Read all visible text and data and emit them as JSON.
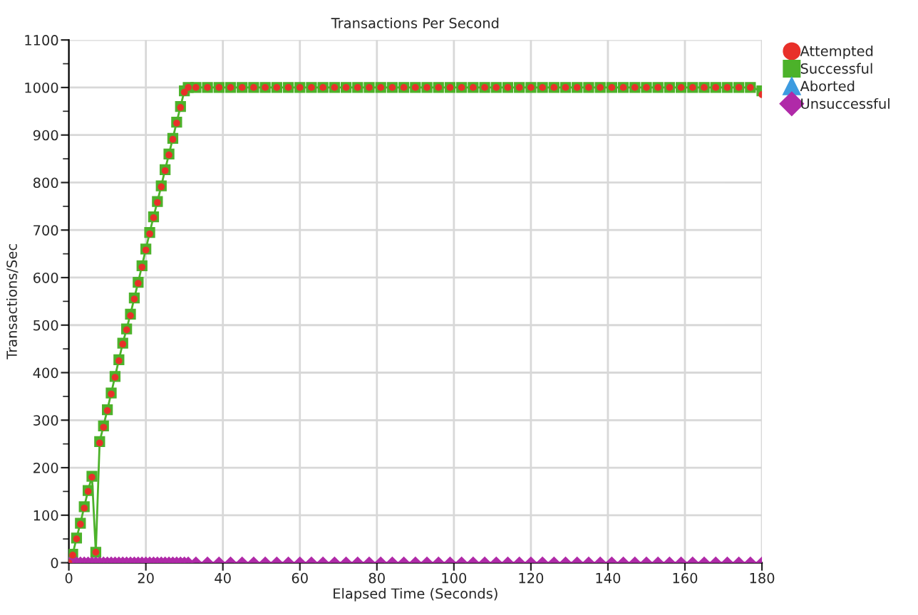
{
  "chart_data": {
    "type": "line",
    "title": "Transactions Per Second",
    "xlabel": "Elapsed Time (Seconds)",
    "ylabel": "Transactions/Sec",
    "x": [
      0,
      1,
      2,
      3,
      4,
      5,
      6,
      7,
      8,
      9,
      10,
      11,
      12,
      13,
      14,
      15,
      16,
      17,
      18,
      19,
      20,
      21,
      22,
      23,
      24,
      25,
      26,
      27,
      28,
      29,
      30,
      31,
      33,
      36,
      39,
      42,
      45,
      48,
      51,
      54,
      57,
      60,
      63,
      66,
      69,
      72,
      75,
      78,
      81,
      84,
      87,
      90,
      93,
      96,
      99,
      102,
      105,
      108,
      111,
      114,
      117,
      120,
      123,
      126,
      129,
      132,
      135,
      138,
      141,
      144,
      147,
      150,
      153,
      156,
      159,
      162,
      165,
      168,
      171,
      174,
      177,
      180
    ],
    "series": [
      {
        "name": "Attempted",
        "type": "scatter",
        "color": "#e8302a",
        "marker": "circle",
        "values": [
          0,
          16,
          50,
          81,
          115,
          150,
          180,
          22,
          252,
          285,
          320,
          355,
          390,
          425,
          460,
          490,
          520,
          555,
          588,
          622,
          658,
          692,
          726,
          758,
          791,
          825,
          858,
          891,
          925,
          958,
          990,
          1000,
          1000,
          1000,
          1000,
          1000,
          1000,
          1000,
          1000,
          1000,
          1000,
          1000,
          1000,
          1000,
          1000,
          1000,
          1000,
          1000,
          1000,
          1000,
          1000,
          1000,
          1000,
          1000,
          1000,
          1000,
          1000,
          1000,
          1000,
          1000,
          1000,
          1000,
          1000,
          1000,
          1000,
          1000,
          1000,
          1000,
          1000,
          1000,
          1000,
          1000,
          1000,
          1000,
          1000,
          1000,
          1000,
          1000,
          1000,
          1000,
          1000,
          985
        ]
      },
      {
        "name": "Successful",
        "color": "#4cb22a",
        "marker": "square",
        "values": [
          0,
          18,
          52,
          83,
          118,
          152,
          182,
          22,
          255,
          288,
          322,
          357,
          392,
          427,
          462,
          492,
          523,
          557,
          590,
          625,
          660,
          695,
          728,
          760,
          793,
          827,
          860,
          893,
          927,
          960,
          993,
          1000,
          1000,
          1000,
          1000,
          1000,
          1000,
          1000,
          1000,
          1000,
          1000,
          1000,
          1000,
          1000,
          1000,
          1000,
          1000,
          1000,
          1000,
          1000,
          1000,
          1000,
          1000,
          1000,
          1000,
          1000,
          1000,
          1000,
          1000,
          1000,
          1000,
          1000,
          1000,
          1000,
          1000,
          1000,
          1000,
          1000,
          1000,
          1000,
          1000,
          1000,
          1000,
          1000,
          1000,
          1000,
          1000,
          1000,
          1000,
          1000,
          1000,
          993
        ]
      },
      {
        "name": "Aborted",
        "color": "#3d9be0",
        "marker": "triangle",
        "values": [
          null,
          null,
          null,
          null,
          null,
          null,
          null,
          null,
          null,
          null,
          null,
          null,
          null,
          null,
          null,
          null,
          null,
          null,
          null,
          null,
          null,
          null,
          null,
          null,
          null,
          null,
          null,
          null,
          null,
          null,
          null,
          null,
          null,
          null,
          null,
          null,
          null,
          null,
          null,
          null,
          null,
          null,
          null,
          null,
          null,
          null,
          null,
          null,
          null,
          null,
          null,
          null,
          null,
          null,
          null,
          null,
          null,
          null,
          null,
          null,
          null,
          null,
          null,
          null,
          null,
          null,
          null,
          null,
          null,
          null,
          null,
          null,
          null,
          null,
          null,
          null,
          null,
          null,
          null,
          null,
          null,
          null
        ]
      },
      {
        "name": "Unsuccessful",
        "color": "#b02aa8",
        "marker": "diamond",
        "values": [
          0,
          0,
          0,
          0,
          0,
          0,
          0,
          0,
          0,
          0,
          0,
          0,
          0,
          0,
          0,
          0,
          0,
          0,
          0,
          0,
          0,
          0,
          0,
          0,
          0,
          0,
          0,
          0,
          0,
          0,
          0,
          0,
          0,
          0,
          0,
          0,
          0,
          0,
          0,
          0,
          0,
          0,
          0,
          0,
          0,
          0,
          0,
          0,
          0,
          0,
          0,
          0,
          0,
          0,
          0,
          0,
          0,
          0,
          0,
          0,
          0,
          0,
          0,
          0,
          0,
          0,
          0,
          0,
          0,
          0,
          0,
          0,
          0,
          0,
          0,
          0,
          0,
          0,
          0,
          0,
          0,
          0
        ]
      }
    ],
    "xlim": [
      0,
      180
    ],
    "xticks": [
      0,
      20,
      40,
      60,
      80,
      100,
      120,
      140,
      160,
      180
    ],
    "ylim": [
      0,
      1100
    ],
    "yticks": [
      0,
      {
        "value": 50,
        "label": null
      },
      100,
      {
        "value": 150,
        "label": null
      },
      200,
      {
        "value": 250,
        "label": null
      },
      300,
      {
        "value": 350,
        "label": null
      },
      400,
      {
        "value": 450,
        "label": null
      },
      500,
      {
        "value": 550,
        "label": null
      },
      600,
      {
        "value": 650,
        "label": null
      },
      700,
      {
        "value": 750,
        "label": null
      },
      800,
      {
        "value": 850,
        "label": null
      },
      900,
      {
        "value": 950,
        "label": null
      },
      1000,
      {
        "value": 1050,
        "label": null
      },
      1100
    ],
    "grid": true,
    "legend": "top right",
    "line_style": "solid"
  }
}
